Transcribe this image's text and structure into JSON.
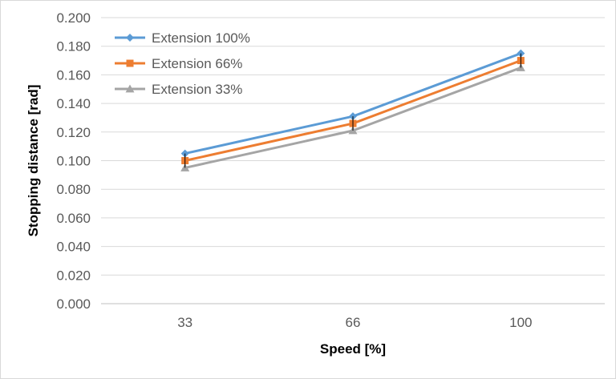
{
  "chart_data": {
    "type": "line",
    "title": "",
    "xlabel": "Speed [%]",
    "ylabel": "Stopping distance [rad]",
    "categories": [
      "33",
      "66",
      "100"
    ],
    "ylim": [
      0,
      0.2
    ],
    "y_ticks": [
      "0.000",
      "0.020",
      "0.040",
      "0.060",
      "0.080",
      "0.100",
      "0.120",
      "0.140",
      "0.160",
      "0.180",
      "0.200"
    ],
    "grid": "horizontal",
    "legend_position": "top-left",
    "series": [
      {
        "name": "Extension 100%",
        "values": [
          0.105,
          0.131,
          0.175
        ],
        "color": "#5B9BD5",
        "marker": "diamond"
      },
      {
        "name": "Extension 66%",
        "values": [
          0.1,
          0.126,
          0.17
        ],
        "color": "#ED7D31",
        "marker": "square"
      },
      {
        "name": "Extension 33%",
        "values": [
          0.095,
          0.121,
          0.165
        ],
        "color": "#A5A5A5",
        "marker": "triangle"
      }
    ]
  }
}
